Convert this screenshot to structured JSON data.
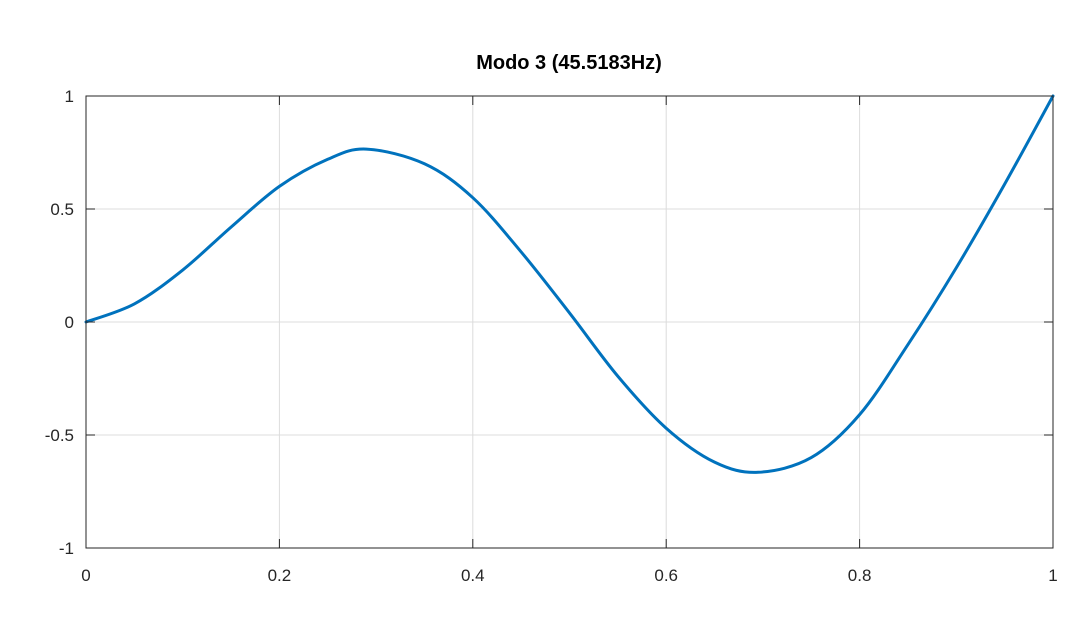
{
  "chart_data": {
    "type": "line",
    "title": "Modo 3 (45.5183Hz)",
    "xlabel": "",
    "ylabel": "",
    "xlim": [
      0,
      1
    ],
    "ylim": [
      -1,
      1
    ],
    "grid": true,
    "x_ticks": [
      0,
      0.2,
      0.4,
      0.6,
      0.8,
      1
    ],
    "x_tick_labels": [
      "0",
      "0.2",
      "0.4",
      "0.6",
      "0.8",
      "1"
    ],
    "y_ticks": [
      -1,
      -0.5,
      0,
      0.5,
      1
    ],
    "y_tick_labels": [
      "-1",
      "-0.5",
      "0",
      "0.5",
      "1"
    ],
    "series": [
      {
        "color": "#0072BD",
        "x": [
          0,
          0.05,
          0.1,
          0.15,
          0.2,
          0.25,
          0.29,
          0.35,
          0.4,
          0.45,
          0.5,
          0.55,
          0.6,
          0.65,
          0.695,
          0.75,
          0.8,
          0.85,
          0.9,
          0.95,
          1
        ],
        "y": [
          0,
          0.08,
          0.23,
          0.42,
          0.6,
          0.72,
          0.765,
          0.7,
          0.55,
          0.31,
          0.04,
          -0.24,
          -0.47,
          -0.62,
          -0.665,
          -0.6,
          -0.41,
          -0.1,
          0.24,
          0.61,
          1.0
        ]
      }
    ]
  }
}
